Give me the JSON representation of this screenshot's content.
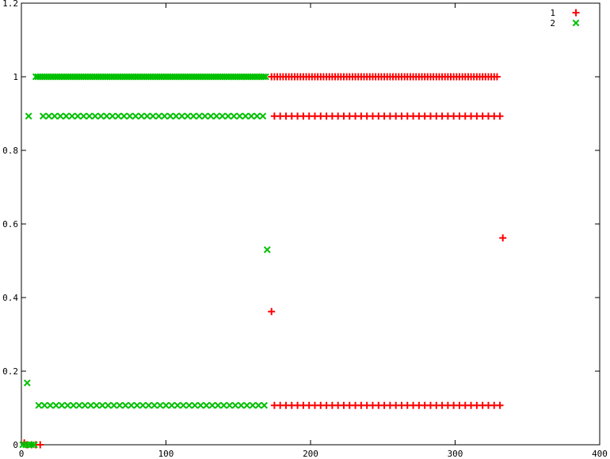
{
  "chart_data": {
    "type": "scatter",
    "xlim": [
      0,
      400
    ],
    "ylim": [
      0,
      1.2
    ],
    "xticks": [
      0,
      100,
      200,
      300,
      400
    ],
    "yticks": [
      0,
      0.2,
      0.4,
      0.6,
      0.8,
      1,
      1.2
    ],
    "ytick_labels": [
      "0",
      "0.2",
      "0.4",
      "0.6",
      "0.8",
      "1",
      "1.2"
    ],
    "grid": false,
    "legend_position": "top-right",
    "series": [
      {
        "name": "1",
        "marker": "plus",
        "color": "#ff0000",
        "bands": [
          {
            "y": 1.0,
            "x_start": 173,
            "x_end": 330,
            "step": 2
          },
          {
            "y": 0.893,
            "x_start": 175,
            "x_end": 333,
            "step": 4
          },
          {
            "y": 0.107,
            "x_start": 175,
            "x_end": 331,
            "step": 4
          }
        ],
        "points": [
          {
            "x": 2,
            "y": 0.005
          },
          {
            "x": 4,
            "y": 0
          },
          {
            "x": 7,
            "y": 0
          },
          {
            "x": 10,
            "y": 0
          },
          {
            "x": 13,
            "y": 0
          },
          {
            "x": 173,
            "y": 0.362
          },
          {
            "x": 333,
            "y": 0.562
          }
        ]
      },
      {
        "name": "2",
        "marker": "cross",
        "color": "#00c000",
        "bands": [
          {
            "y": 1.0,
            "x_start": 10,
            "x_end": 170,
            "step": 1.5
          },
          {
            "y": 0.893,
            "x_start": 15,
            "x_end": 168,
            "step": 4
          },
          {
            "y": 0.107,
            "x_start": 12,
            "x_end": 171,
            "step": 4
          }
        ],
        "points": [
          {
            "x": 1,
            "y": 0
          },
          {
            "x": 3,
            "y": 0
          },
          {
            "x": 5,
            "y": 0
          },
          {
            "x": 7,
            "y": 0
          },
          {
            "x": 9,
            "y": 0
          },
          {
            "x": 5,
            "y": 0.893
          },
          {
            "x": 4,
            "y": 0.168
          },
          {
            "x": 170,
            "y": 0.53
          }
        ]
      }
    ]
  }
}
